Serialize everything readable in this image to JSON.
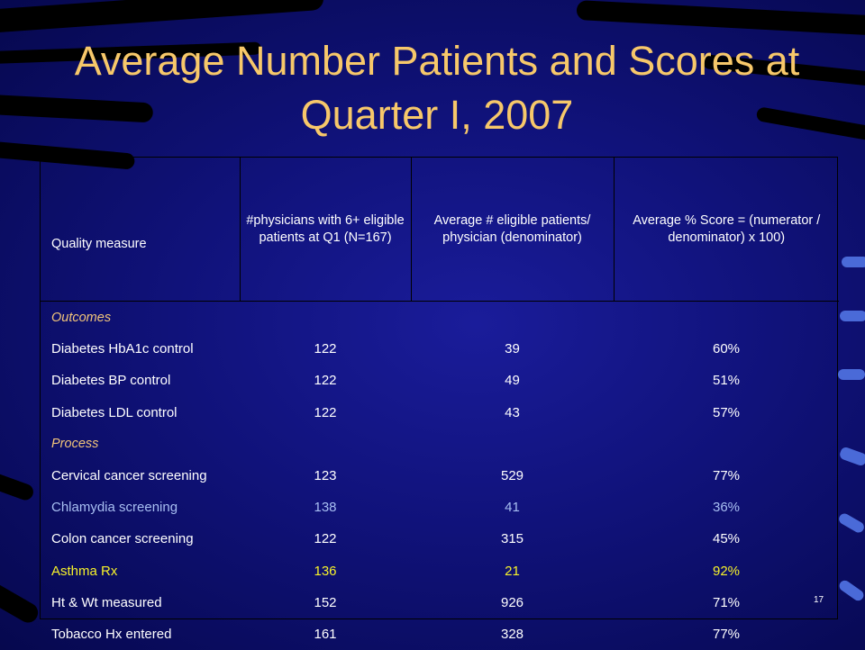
{
  "slide": {
    "title": "Average Number Patients and Scores at Quarter I, 2007",
    "slide_number": "17"
  },
  "table": {
    "headers": [
      "Quality measure",
      "#physicians with 6+ eligible patients at Q1 (N=167)",
      "Average # eligible patients/ physician (denominator)",
      "Average % Score = (numerator / denominator) x 100)"
    ],
    "sections": [
      {
        "label": "Outcomes",
        "rows": [
          {
            "measure": "Diabetes HbA1c control",
            "physicians": "122",
            "avg_patients": "39",
            "score": "60%"
          },
          {
            "measure": "Diabetes BP control",
            "physicians": "122",
            "avg_patients": "49",
            "score": "51%"
          },
          {
            "measure": "Diabetes LDL control",
            "physicians": "122",
            "avg_patients": "43",
            "score": "57%"
          }
        ]
      },
      {
        "label": "Process",
        "rows": [
          {
            "measure": "Cervical cancer screening",
            "physicians": "123",
            "avg_patients": "529",
            "score": "77%"
          },
          {
            "measure": "Chlamydia screening",
            "physicians": "138",
            "avg_patients": "41",
            "score": "36%"
          },
          {
            "measure": "Colon cancer screening",
            "physicians": "122",
            "avg_patients": "315",
            "score": "45%"
          },
          {
            "measure": "Asthma Rx",
            "physicians": "136",
            "avg_patients": "21",
            "score": "92%"
          },
          {
            "measure": "Ht & Wt measured",
            "physicians": "152",
            "avg_patients": "926",
            "score": "71%"
          },
          {
            "measure": "Tobacco Hx entered",
            "physicians": "161",
            "avg_patients": "328",
            "score": "77%"
          }
        ]
      }
    ]
  },
  "colors": {
    "title": "#f7c86a",
    "section_label": "#f2c57a",
    "chlamydia_row": "#a8bff2",
    "asthma_row": "#f7f22a",
    "text": "#ffffff"
  }
}
